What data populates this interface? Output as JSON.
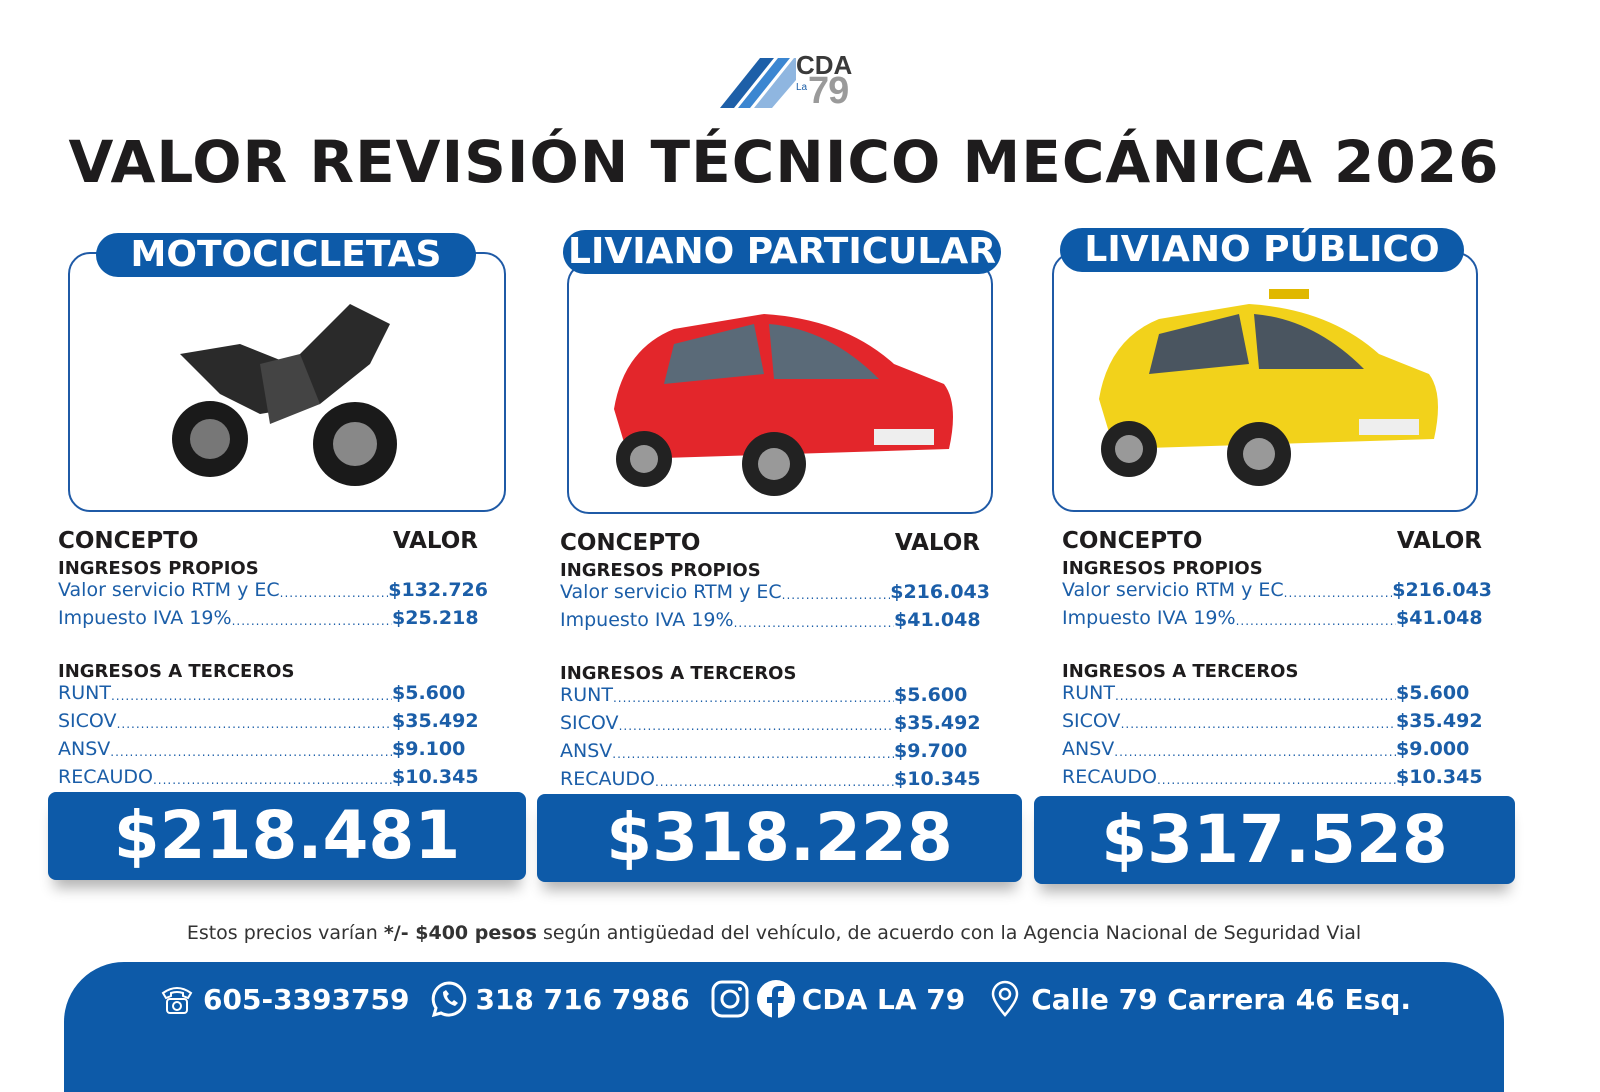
{
  "logo": {
    "top": "CDA",
    "small": "La",
    "number": "79"
  },
  "title": "VALOR REVISIÓN TÉCNICO MECÁNICA 2026",
  "columns_header": {
    "concept": "CONCEPTO",
    "value": "VALOR"
  },
  "sections": {
    "own": "INGRESOS PROPIOS",
    "third": "INGRESOS A TERCEROS"
  },
  "categories": [
    {
      "name": "MOTOCICLETAS",
      "vehicle": "motorcycle-image",
      "color": "#2a2a2a",
      "own": [
        {
          "label": "Valor servicio RTM y EC",
          "value": "$132.726"
        },
        {
          "label": "Impuesto IVA 19%",
          "value": "$25.218"
        }
      ],
      "third": [
        {
          "label": "RUNT",
          "value": "$5.600"
        },
        {
          "label": "SICOV",
          "value": "$35.492"
        },
        {
          "label": "ANSV",
          "value": "$9.100"
        },
        {
          "label": "RECAUDO",
          "value": "$10.345"
        }
      ],
      "total": "$218.481"
    },
    {
      "name": "LIVIANO PARTICULAR",
      "vehicle": "red-car-image",
      "color": "#e3262b",
      "own": [
        {
          "label": "Valor servicio RTM y EC",
          "value": "$216.043"
        },
        {
          "label": "Impuesto IVA 19%",
          "value": "$41.048"
        }
      ],
      "third": [
        {
          "label": "RUNT",
          "value": "$5.600"
        },
        {
          "label": "SICOV",
          "value": "$35.492"
        },
        {
          "label": "ANSV",
          "value": "$9.700"
        },
        {
          "label": "RECAUDO",
          "value": "$10.345"
        }
      ],
      "total": "$318.228"
    },
    {
      "name": "LIVIANO PÚBLICO",
      "vehicle": "yellow-taxi-image",
      "color": "#f2d21b",
      "own": [
        {
          "label": "Valor servicio RTM y EC",
          "value": "$216.043"
        },
        {
          "label": "Impuesto IVA 19%",
          "value": "$41.048"
        }
      ],
      "third": [
        {
          "label": "RUNT",
          "value": "$5.600"
        },
        {
          "label": "SICOV",
          "value": "$35.492"
        },
        {
          "label": "ANSV",
          "value": "$9.000"
        },
        {
          "label": "RECAUDO",
          "value": "$10.345"
        }
      ],
      "total": "$317.528"
    }
  ],
  "note": {
    "pre": "Estos precios varían ",
    "bold": "*/- $400 pesos",
    "post": " según antigüedad del vehículo, de acuerdo con la Agencia Nacional de Seguridad Vial"
  },
  "footer": {
    "phone": "605-3393759",
    "whatsapp": "318 716 7986",
    "social": "CDA LA 79",
    "address": "Calle 79 Carrera 46 Esq."
  },
  "colors": {
    "brand": "#0d5aa8",
    "text": "#1b5ea8"
  }
}
